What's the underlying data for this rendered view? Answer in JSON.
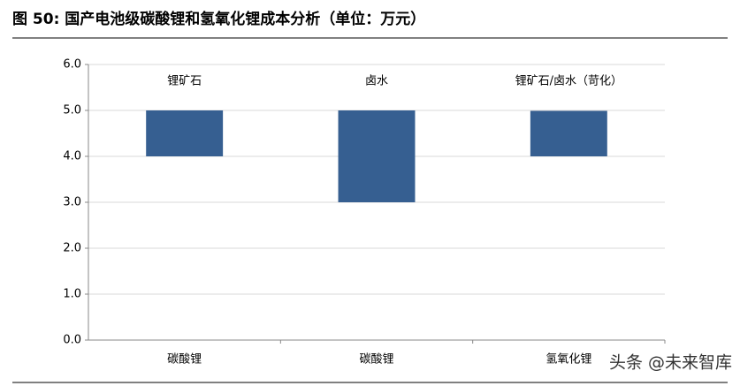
{
  "chart_data": {
    "type": "floating-bar",
    "title": "图 50:  国产电池级碳酸锂和氢氧化锂成本分析（单位：万元）",
    "categories": [
      "碳酸锂",
      "碳酸锂",
      "氢氧化锂"
    ],
    "group_labels": [
      "锂矿石",
      "卤水",
      "锂矿石/卤水（苛化）"
    ],
    "low": [
      4,
      3,
      4
    ],
    "high": [
      5,
      5,
      4.99
    ],
    "color": "#365f91",
    "ylim": [
      0,
      6
    ],
    "yticks": [
      {
        "value": 0,
        "label": "0.0"
      },
      {
        "value": 1,
        "label": "1.0"
      },
      {
        "value": 2,
        "label": "2.0"
      },
      {
        "value": 3,
        "label": "3.0"
      },
      {
        "value": 4,
        "label": "4.0"
      },
      {
        "value": 5,
        "label": "5.0"
      },
      {
        "value": 6,
        "label": "6.0"
      }
    ],
    "grid": true,
    "watermark": "头条 @未来智库"
  }
}
